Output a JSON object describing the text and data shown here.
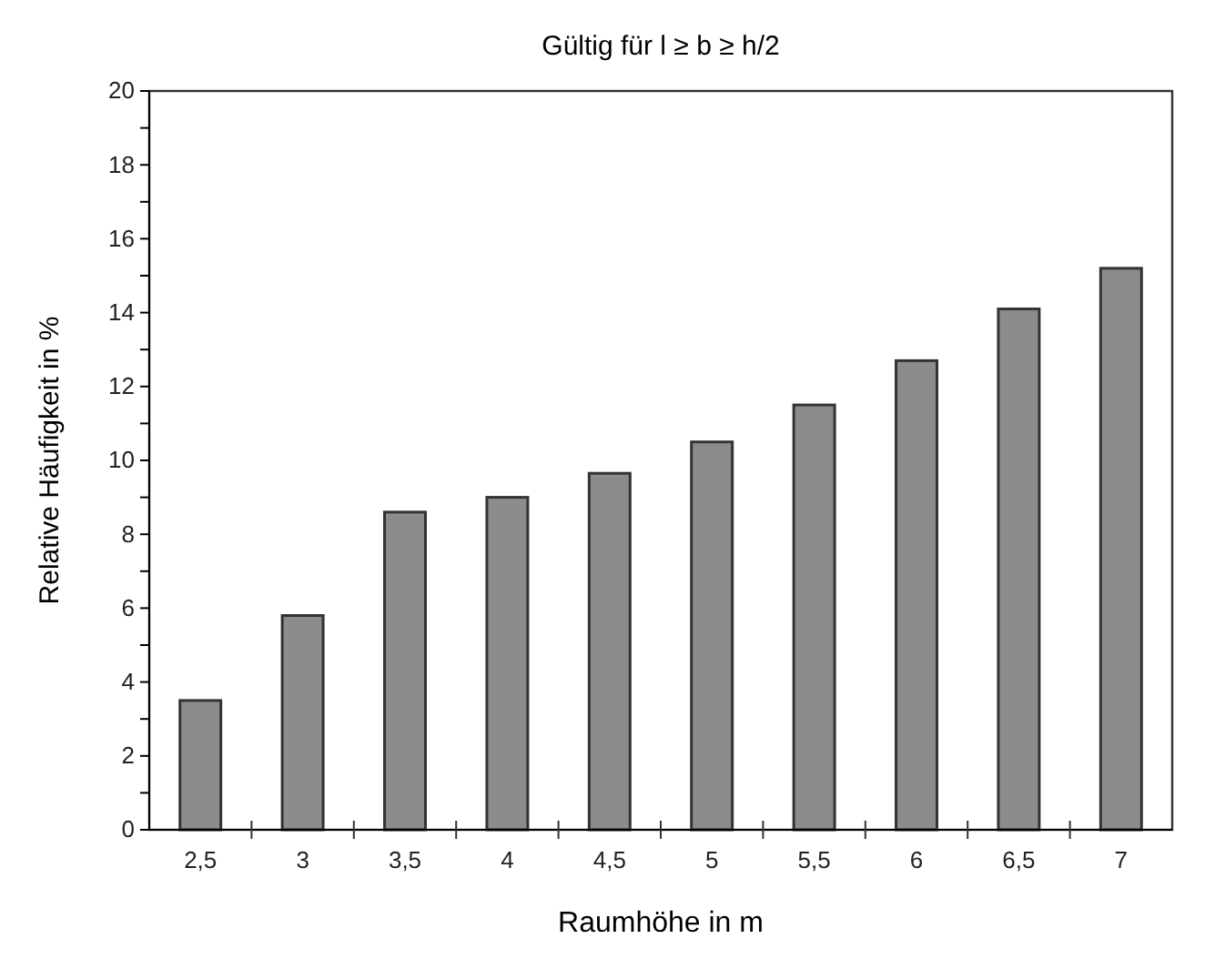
{
  "chart_data": {
    "type": "bar",
    "title": "Gültig für l ≥ b ≥ h/2",
    "xlabel": "Raumhöhe in m",
    "ylabel": "Relative Häufigkeit in %",
    "categories": [
      "2,5",
      "3",
      "3,5",
      "4",
      "4,5",
      "5",
      "5,5",
      "6",
      "6,5",
      "7"
    ],
    "values": [
      3.5,
      5.8,
      8.6,
      9.0,
      9.65,
      10.5,
      11.5,
      12.7,
      14.1,
      15.2
    ],
    "color": "#8c8c8c",
    "ylim": [
      0,
      20
    ],
    "yticks": [
      0,
      {
        "value": 1,
        "label": null
      },
      2,
      {
        "value": 3,
        "label": null
      },
      4,
      {
        "value": 5,
        "label": null
      },
      6,
      {
        "value": 7,
        "label": null
      },
      8,
      {
        "value": 9,
        "label": null
      },
      10,
      {
        "value": 11,
        "label": null
      },
      12,
      {
        "value": 13,
        "label": null
      },
      14,
      {
        "value": 15,
        "label": null
      },
      16,
      {
        "value": 17,
        "label": null
      },
      18,
      {
        "value": 19,
        "label": null
      },
      20
    ],
    "grid": false
  }
}
